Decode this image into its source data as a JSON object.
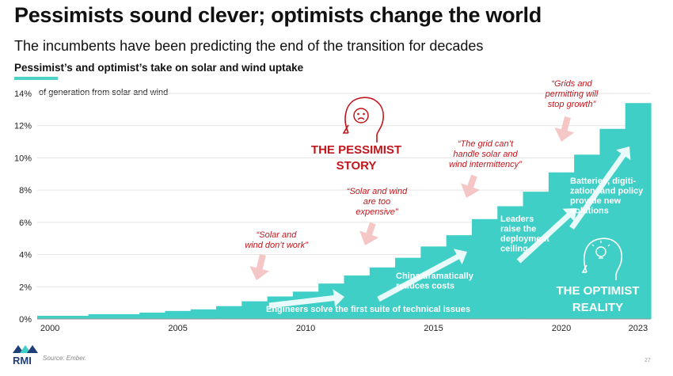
{
  "header": {
    "title": "Pessimists sound clever; optimists change the world",
    "subtitle": "The incumbents have been predicting the end of the transition for decades"
  },
  "footer": {
    "source": "Source: Ember.",
    "page_number": "27",
    "logo_text": "RMI"
  },
  "colors": {
    "bar": "#3fcfc6",
    "pessimist_red": "#c0161c",
    "pessimist_arrow": "#f5c6c6",
    "optimist_text": "#ffffff",
    "optimist_arrow": "#e8fbfa",
    "logo_blue": "#1f3e7a",
    "logo_teal": "#3fcfc6"
  },
  "chart_data": {
    "type": "bar",
    "title": "Pessimist’s and optimist’s take on solar and wind uptake",
    "ylabel": "of generation from solar and wind",
    "ylim": [
      0,
      14
    ],
    "y_ticks": [
      "0%",
      "2%",
      "4%",
      "6%",
      "8%",
      "10%",
      "12%",
      "14%"
    ],
    "x_tick_labels": [
      "2000",
      "2005",
      "2010",
      "2015",
      "2020",
      "2023"
    ],
    "categories": [
      "2000",
      "2001",
      "2002",
      "2003",
      "2004",
      "2005",
      "2006",
      "2007",
      "2008",
      "2009",
      "2010",
      "2011",
      "2012",
      "2013",
      "2014",
      "2015",
      "2016",
      "2017",
      "2018",
      "2019",
      "2020",
      "2021",
      "2022",
      "2023"
    ],
    "values": [
      0.2,
      0.2,
      0.3,
      0.3,
      0.4,
      0.5,
      0.6,
      0.8,
      1.1,
      1.4,
      1.7,
      2.2,
      2.7,
      3.2,
      3.8,
      4.5,
      5.2,
      6.2,
      7.0,
      7.9,
      9.1,
      10.2,
      11.8,
      13.4
    ],
    "pessimist": {
      "heading": [
        "THE PESSIMIST",
        "STORY"
      ],
      "quotes": [
        {
          "lines": [
            "“Solar and",
            "wind don’t work”"
          ]
        },
        {
          "lines": [
            "“Solar and wind",
            "are too",
            "expensive”"
          ]
        },
        {
          "lines": [
            "“The grid can’t",
            "handle solar and",
            "wind intermittency”"
          ]
        },
        {
          "lines": [
            "“Grids and",
            "permitting will",
            "stop growth”"
          ]
        }
      ]
    },
    "optimist": {
      "heading": [
        "THE OPTIMIST",
        "REALITY"
      ],
      "notes": [
        {
          "lines": [
            "Engineers solve the first suite of technical issues"
          ]
        },
        {
          "lines": [
            "China dramatically",
            "reduces costs"
          ]
        },
        {
          "lines": [
            "Leaders",
            "raise the",
            "deployment",
            "ceiling"
          ]
        },
        {
          "lines": [
            "Batteries, digiti-",
            "zation, and policy",
            "provide new",
            "solutions"
          ]
        }
      ]
    }
  }
}
